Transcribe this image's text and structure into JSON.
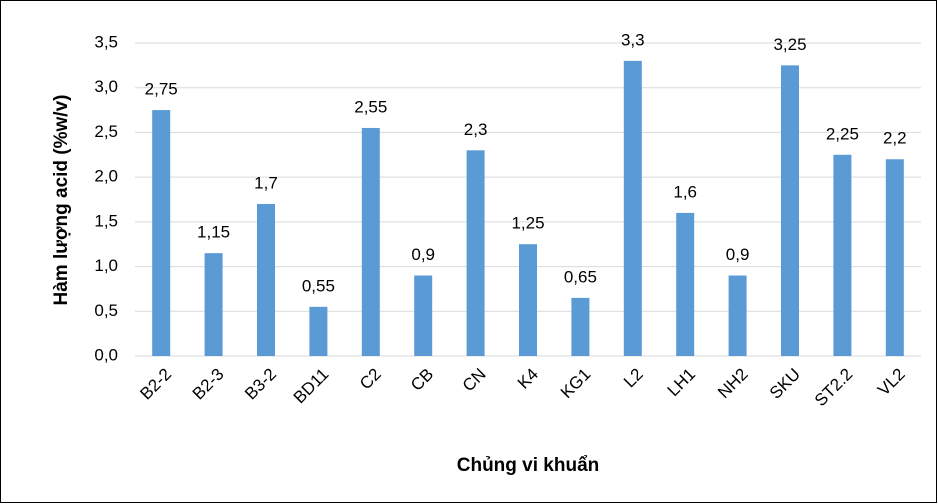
{
  "chart_data": {
    "type": "bar",
    "x_label": "Chủng vi khuẩn",
    "y_label": "Hàm lượng acid (%w/v)",
    "categories": [
      "B2-2",
      "B2-3",
      "B3-2",
      "BD11",
      "C2",
      "CB",
      "CN",
      "K4",
      "KG1",
      "L2",
      "LH1",
      "NH2",
      "SKU",
      "ST2.2",
      "VL2"
    ],
    "values": [
      2.75,
      1.15,
      1.7,
      0.55,
      2.55,
      0.9,
      2.3,
      1.25,
      0.65,
      3.3,
      1.6,
      0.9,
      3.25,
      2.25,
      2.2
    ],
    "value_labels": [
      "2,75",
      "1,15",
      "1,7",
      "0,55",
      "2,55",
      "0,9",
      "2,3",
      "1,25",
      "0,65",
      "3,3",
      "1,6",
      "0,9",
      "3,25",
      "2,25",
      "2,2"
    ],
    "color": "#5b9bd5",
    "ylim": [
      0,
      3.5
    ],
    "yticks": [
      {
        "value": 0,
        "label": "0,0"
      },
      {
        "value": 0.5,
        "label": "0,5"
      },
      {
        "value": 1,
        "label": "1,0"
      },
      {
        "value": 1.5,
        "label": "1,5"
      },
      {
        "value": 2,
        "label": "2,0"
      },
      {
        "value": 2.5,
        "label": "2,5"
      },
      {
        "value": 3,
        "label": "3,0"
      },
      {
        "value": 3.5,
        "label": "3,5"
      }
    ],
    "grid": true
  }
}
